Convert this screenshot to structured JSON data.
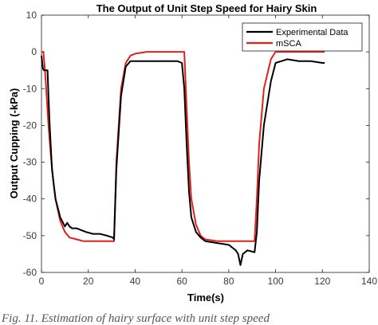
{
  "chart_data": {
    "type": "line",
    "title": "The Output of Unit Step Speed for Hairy Skin",
    "xlabel": "Time(s)",
    "ylabel": "Output Cupping (-kPa)",
    "xlim": [
      0,
      140
    ],
    "ylim": [
      -60,
      10
    ],
    "xticks": [
      0,
      20,
      40,
      60,
      80,
      100,
      120,
      140
    ],
    "yticks": [
      10,
      0,
      -10,
      -20,
      -30,
      -40,
      -50,
      -60
    ],
    "grid": false,
    "legend_position": "top-right",
    "series": [
      {
        "name": "Experimental Data",
        "color": "#000000",
        "x": [
          0,
          0.6,
          1.0,
          2.6,
          3.0,
          3.5,
          4.5,
          6,
          8,
          10,
          11,
          12,
          13,
          15,
          17,
          19,
          22,
          25,
          28,
          30.5,
          31,
          32,
          34,
          36,
          38,
          40,
          45,
          50,
          55,
          58,
          60,
          61,
          62,
          63,
          64,
          66,
          68,
          70,
          75,
          80,
          83,
          84,
          85,
          86,
          88,
          91,
          92,
          93,
          95,
          98,
          100,
          105,
          110,
          115,
          120,
          121
        ],
        "y": [
          -1,
          -4.5,
          -5,
          -5,
          -12,
          -20,
          -32,
          -40,
          -45,
          -47.5,
          -46.5,
          -47.5,
          -48,
          -48,
          -48.5,
          -49,
          -49.5,
          -49.5,
          -50,
          -50.5,
          -51,
          -32,
          -12,
          -4,
          -2.5,
          -2.5,
          -2.5,
          -2.5,
          -2.5,
          -2.5,
          -3,
          -10,
          -25,
          -38,
          -45,
          -49,
          -50.5,
          -51.5,
          -52,
          -52.5,
          -54,
          -55,
          -58,
          -55,
          -54,
          -54.5,
          -49,
          -35,
          -20,
          -8,
          -3,
          -2,
          -2.5,
          -2.5,
          -3,
          -3
        ]
      },
      {
        "name": "mSCA",
        "color": "#e0201b",
        "x": [
          0,
          0.8,
          1.5,
          2,
          3,
          4,
          5,
          6,
          8,
          10,
          12,
          15,
          18,
          20,
          25,
          30,
          31,
          32,
          34,
          36,
          38,
          40,
          45,
          50,
          55,
          60,
          61,
          62,
          63,
          64,
          66,
          68,
          70,
          75,
          80,
          85,
          90,
          91,
          92,
          93,
          95,
          98,
          100,
          105,
          110,
          115,
          120,
          121
        ],
        "y": [
          0,
          0,
          -5,
          -10,
          -20,
          -28,
          -35,
          -40,
          -46,
          -49,
          -50.5,
          -51,
          -51.5,
          -51.5,
          -51.5,
          -51.5,
          -51.5,
          -30,
          -10,
          -3,
          -1,
          -0.5,
          0,
          0,
          0,
          0,
          0,
          -15,
          -30,
          -40,
          -47,
          -50,
          -51,
          -51.5,
          -51.5,
          -51.5,
          -51.5,
          -51.5,
          -40,
          -25,
          -10,
          -2,
          0,
          0,
          0,
          0,
          0,
          0
        ]
      }
    ]
  },
  "caption": "Fig. 11. Estimation of hairy surface with unit step speed"
}
